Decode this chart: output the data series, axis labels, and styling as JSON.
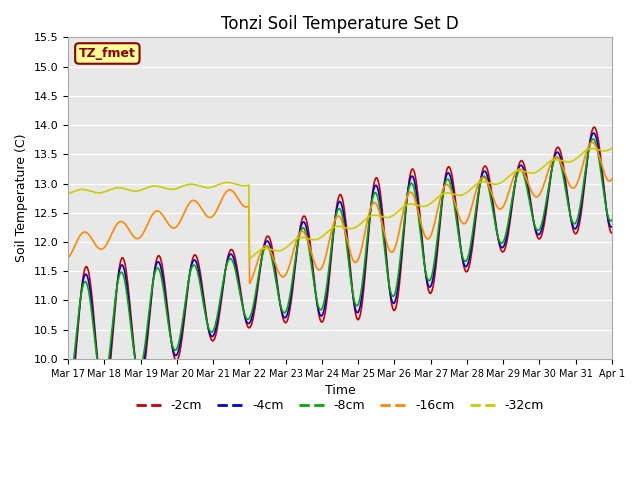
{
  "title": "Tonzi Soil Temperature Set D",
  "xlabel": "Time",
  "ylabel": "Soil Temperature (C)",
  "ylim": [
    10.0,
    15.5
  ],
  "yticks": [
    10.0,
    10.5,
    11.0,
    11.5,
    12.0,
    12.5,
    13.0,
    13.5,
    14.0,
    14.5,
    15.0,
    15.5
  ],
  "bg_color": "#e8e8e8",
  "legend_label": "TZ_fmet",
  "legend_bg": "#ffff99",
  "legend_border": "#8b0000",
  "series_colors": {
    "-2cm": "#cc0000",
    "-4cm": "#0000cc",
    "-8cm": "#00aa00",
    "-16cm": "#ff8800",
    "-32cm": "#cccc00"
  },
  "xtick_labels": [
    "Mar 17",
    "Mar 18",
    "Mar 19",
    "Mar 20",
    "Mar 21",
    "Mar 22",
    "Mar 23",
    "Mar 24",
    "Mar 25",
    "Mar 26",
    "Mar 27",
    "Mar 28",
    "Mar 29",
    "Mar 30",
    "Mar 31",
    "Apr 1"
  ],
  "legend_order": [
    "-2cm",
    "-4cm",
    "-8cm",
    "-16cm",
    "-32cm"
  ]
}
